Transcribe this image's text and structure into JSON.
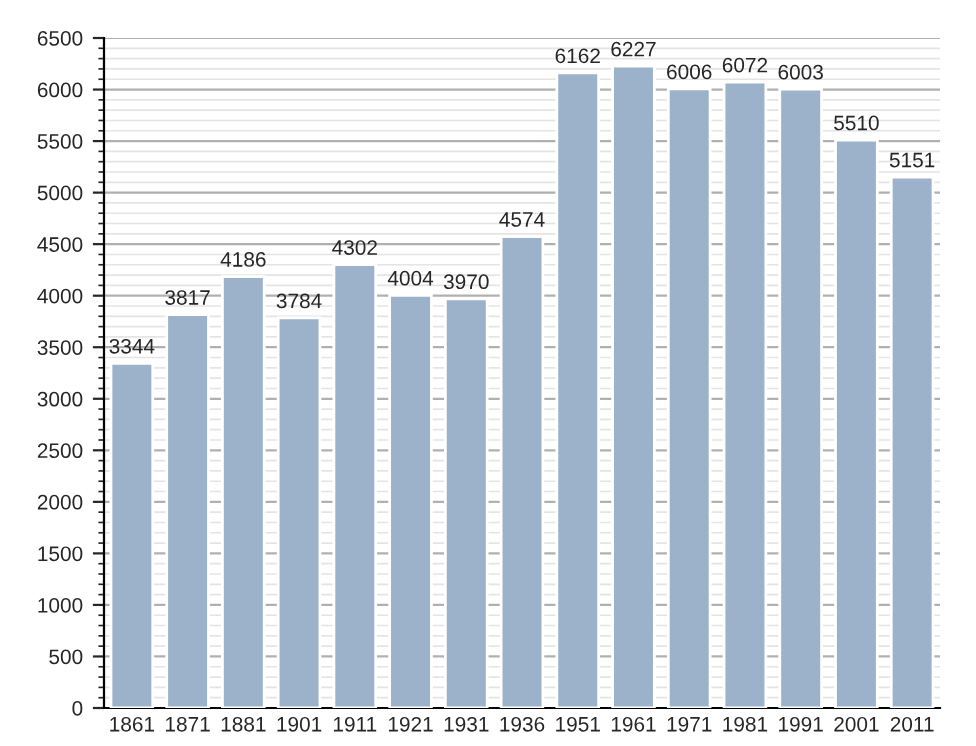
{
  "chart_data": {
    "type": "bar",
    "categories": [
      "1861",
      "1871",
      "1881",
      "1901",
      "1911",
      "1921",
      "1931",
      "1936",
      "1951",
      "1961",
      "1971",
      "1981",
      "1991",
      "2001",
      "2011"
    ],
    "values": [
      3344,
      3817,
      4186,
      3784,
      4302,
      4004,
      3970,
      4574,
      6162,
      6227,
      6006,
      6072,
      6003,
      5510,
      5151
    ],
    "color": "#9cb2cb",
    "ylim": [
      0,
      6500
    ],
    "yticks": [
      0,
      500,
      1000,
      1500,
      2000,
      2500,
      3000,
      3500,
      4000,
      4500,
      5000,
      5500,
      6000,
      6500
    ],
    "grid": "y",
    "data_labels": true
  }
}
